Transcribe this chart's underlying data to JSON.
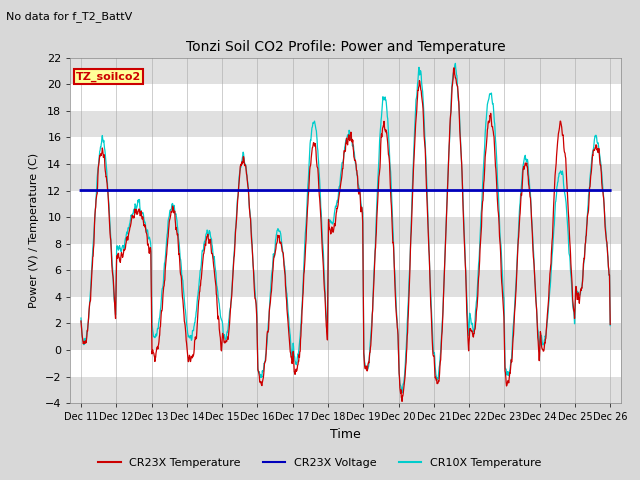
{
  "title": "Tonzi Soil CO2 Profile: Power and Temperature",
  "subtitle": "No data for f_T2_BattV",
  "xlabel": "Time",
  "ylabel": "Power (V) / Temperature (C)",
  "ylim": [
    -4,
    22
  ],
  "yticks": [
    -4,
    -2,
    0,
    2,
    4,
    6,
    8,
    10,
    12,
    14,
    16,
    18,
    20,
    22
  ],
  "xtick_labels": [
    "Dec 11",
    "Dec 12",
    "Dec 13",
    "Dec 14",
    "Dec 15",
    "Dec 16",
    "Dec 17",
    "Dec 18",
    "Dec 19",
    "Dec 20",
    "Dec 21",
    "Dec 22",
    "Dec 23",
    "Dec 24",
    "Dec 25",
    "Dec 26"
  ],
  "legend_labels": [
    "CR23X Temperature",
    "CR23X Voltage",
    "CR10X Temperature"
  ],
  "box_label": "TZ_soilco2",
  "box_text_color": "#cc0000",
  "box_bg_color": "#ffff99",
  "voltage_value": 12.0,
  "voltage_color": "#0000bb",
  "temp_cr23x_color": "#cc0000",
  "temp_cr10x_color": "#00cccc",
  "bg_color": "#f0f0f0",
  "fig_bg_color": "#d8d8d8",
  "band_color_light": "#ffffff",
  "band_color_dark": "#e0e0e0",
  "day_peaks_cr23x": [
    15.0,
    10.5,
    10.5,
    8.5,
    14.5,
    8.5,
    15.5,
    16.0,
    17.0,
    20.0,
    21.0,
    17.5,
    14.0,
    16.8,
    15.5
  ],
  "day_peaks_cr10x": [
    15.8,
    11.0,
    11.0,
    9.0,
    14.5,
    9.0,
    17.2,
    16.2,
    19.0,
    21.0,
    21.2,
    19.5,
    14.5,
    13.5,
    16.0
  ],
  "day_troughs_cr23x": [
    0.5,
    7.0,
    -0.5,
    -1.0,
    0.5,
    -2.5,
    -1.5,
    9.0,
    -1.5,
    -3.5,
    -2.5,
    1.0,
    -2.5,
    0.0,
    4.0
  ],
  "day_troughs_cr10x": [
    0.5,
    7.5,
    1.0,
    1.0,
    1.0,
    -2.0,
    -1.0,
    9.5,
    -1.5,
    -3.0,
    -2.0,
    1.5,
    -2.0,
    0.5,
    4.0
  ]
}
